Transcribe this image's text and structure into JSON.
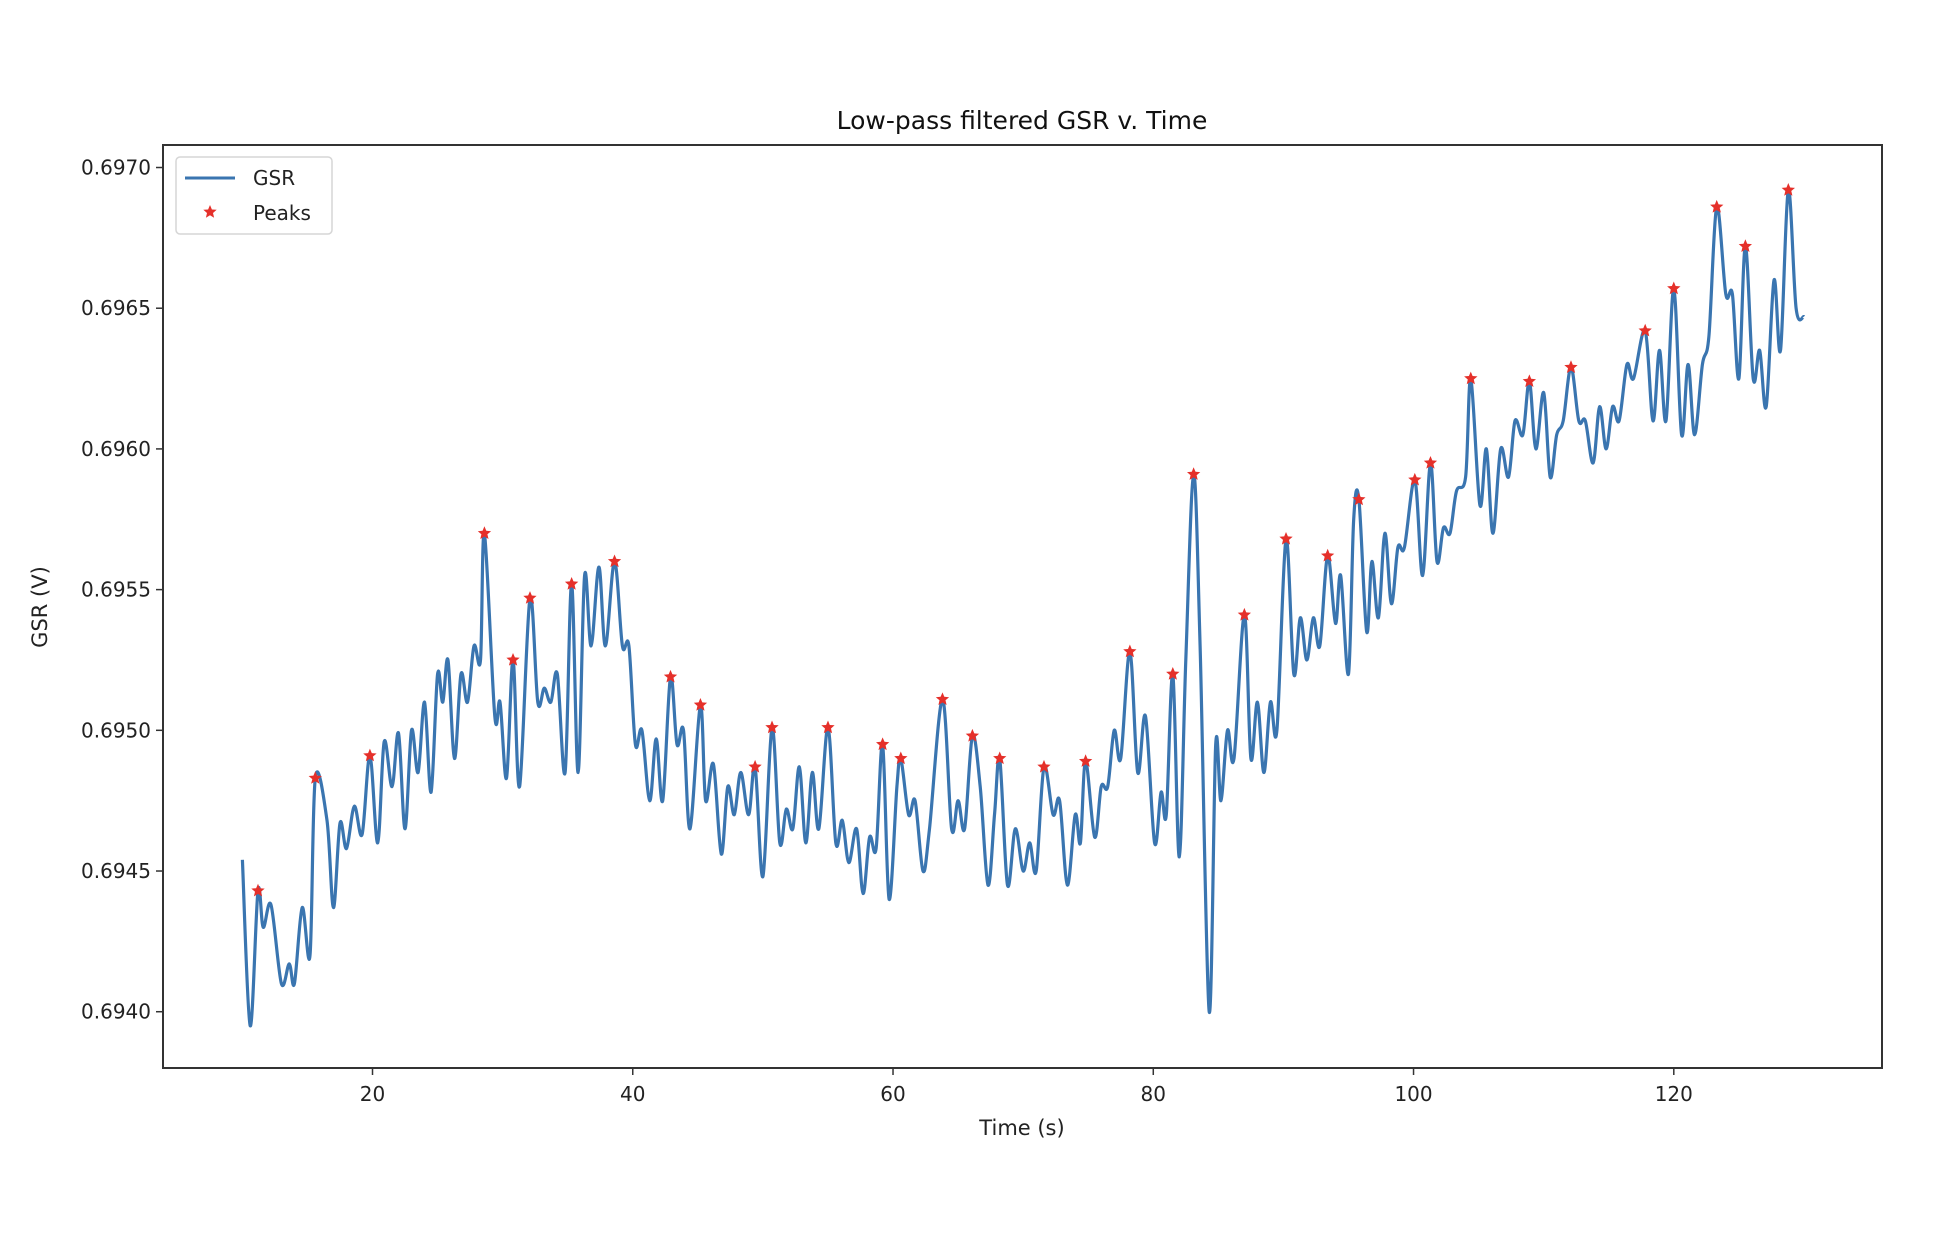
{
  "chart_data": {
    "type": "line",
    "title": "Low-pass filtered GSR v. Time",
    "xlabel": "Time (s)",
    "ylabel": "GSR (V)",
    "xlim": [
      3.9,
      136.0
    ],
    "ylim": [
      0.6938,
      0.69708
    ],
    "xticks": [
      20,
      40,
      60,
      80,
      100,
      120
    ],
    "xtick_labels": [
      "20",
      "40",
      "60",
      "80",
      "100",
      "120"
    ],
    "yticks": [
      0.694,
      0.6945,
      0.695,
      0.6955,
      0.696,
      0.6965,
      0.697
    ],
    "ytick_labels": [
      "0.6940",
      "0.6945",
      "0.6950",
      "0.6955",
      "0.6960",
      "0.6965",
      "0.6970"
    ],
    "grid": false,
    "legend": {
      "placement": "upper-left",
      "entries": [
        "GSR",
        "Peaks"
      ]
    },
    "colors": {
      "GSR": "#3a75b0",
      "Peaks": "#e5302a"
    },
    "series": [
      {
        "name": "GSR",
        "x": [
          10,
          10.6,
          11.2,
          11.6,
          12.2,
          13.0,
          13.6,
          14.0,
          14.6,
          15.2,
          15.6,
          16.5,
          17.0,
          17.5,
          18.0,
          18.6,
          19.2,
          19.8,
          20.4,
          20.9,
          21.5,
          22.0,
          22.5,
          23.0,
          23.5,
          24.0,
          24.5,
          25.0,
          25.4,
          25.8,
          26.3,
          26.8,
          27.3,
          27.8,
          28.3,
          28.6,
          29.4,
          29.8,
          30.3,
          30.8,
          31.3,
          32.1,
          32.7,
          33.2,
          33.7,
          34.2,
          34.8,
          35.3,
          35.8,
          36.3,
          36.8,
          37.4,
          37.9,
          38.6,
          39.2,
          39.7,
          40.2,
          40.7,
          41.3,
          41.8,
          42.3,
          42.9,
          43.4,
          43.9,
          44.4,
          45.2,
          45.6,
          46.2,
          46.8,
          47.3,
          47.8,
          48.3,
          48.9,
          49.4,
          50.0,
          50.7,
          51.3,
          51.8,
          52.3,
          52.8,
          53.3,
          53.8,
          54.3,
          55.0,
          55.6,
          56.1,
          56.6,
          57.2,
          57.7,
          58.2,
          58.7,
          59.2,
          59.7,
          60.3,
          60.6,
          61.2,
          61.7,
          62.3,
          62.8,
          63.8,
          64.5,
          65.0,
          65.5,
          66.1,
          66.7,
          67.3,
          67.8,
          68.2,
          68.8,
          69.4,
          70.0,
          70.5,
          71.0,
          71.6,
          72.3,
          72.8,
          73.4,
          74.0,
          74.4,
          74.8,
          75.5,
          76.0,
          76.5,
          77.0,
          77.5,
          78.2,
          78.8,
          79.4,
          80.1,
          80.6,
          81.0,
          81.5,
          82.0,
          82.5,
          83.1,
          83.6,
          84.3,
          84.8,
          85.2,
          85.7,
          86.2,
          87.0,
          87.5,
          88.0,
          88.5,
          89.0,
          89.5,
          90.2,
          90.8,
          91.3,
          91.8,
          92.3,
          92.8,
          93.4,
          94.0,
          94.4,
          95.0,
          95.4,
          95.8,
          96.4,
          96.8,
          97.3,
          97.8,
          98.3,
          98.8,
          99.3,
          100.1,
          100.7,
          101.3,
          101.8,
          102.3,
          102.8,
          103.3,
          104.0,
          104.4,
          105.1,
          105.6,
          106.1,
          106.7,
          107.3,
          107.8,
          108.4,
          108.9,
          109.4,
          110.0,
          110.5,
          111.0,
          111.5,
          112.1,
          112.7,
          113.2,
          113.8,
          114.3,
          114.8,
          115.3,
          115.8,
          116.4,
          116.9,
          117.8,
          118.4,
          118.9,
          119.4,
          120.0,
          120.6,
          121.1,
          121.6,
          122.2,
          122.7,
          123.3,
          124.0,
          124.5,
          125.0,
          125.5,
          126.1,
          126.6,
          127.1,
          127.7,
          128.2,
          128.8,
          129.4,
          130.0
        ],
        "y": [
          0.69454,
          0.69395,
          0.69443,
          0.6943,
          0.69438,
          0.6941,
          0.69417,
          0.6941,
          0.69437,
          0.6942,
          0.69483,
          0.69468,
          0.69437,
          0.69467,
          0.69458,
          0.69473,
          0.69463,
          0.69491,
          0.6946,
          0.69496,
          0.6948,
          0.69499,
          0.69465,
          0.695,
          0.69485,
          0.6951,
          0.69478,
          0.6952,
          0.6951,
          0.69525,
          0.6949,
          0.6952,
          0.6951,
          0.6953,
          0.69525,
          0.6957,
          0.69505,
          0.6951,
          0.69483,
          0.69525,
          0.6948,
          0.69547,
          0.6951,
          0.69515,
          0.6951,
          0.6952,
          0.69485,
          0.69552,
          0.69485,
          0.69555,
          0.6953,
          0.69558,
          0.6953,
          0.6956,
          0.6953,
          0.6953,
          0.69495,
          0.695,
          0.69475,
          0.69497,
          0.69475,
          0.69519,
          0.69495,
          0.695,
          0.69465,
          0.69509,
          0.69475,
          0.69488,
          0.69456,
          0.6948,
          0.6947,
          0.69485,
          0.6947,
          0.69487,
          0.69448,
          0.69501,
          0.6946,
          0.69472,
          0.69465,
          0.69487,
          0.6946,
          0.69485,
          0.69465,
          0.69501,
          0.6946,
          0.69468,
          0.69453,
          0.69465,
          0.69442,
          0.69462,
          0.69458,
          0.69495,
          0.6944,
          0.6948,
          0.6949,
          0.6947,
          0.69475,
          0.6945,
          0.69465,
          0.69511,
          0.69465,
          0.69475,
          0.69465,
          0.69498,
          0.6948,
          0.69445,
          0.6947,
          0.6949,
          0.69445,
          0.69465,
          0.6945,
          0.6946,
          0.6945,
          0.69487,
          0.6947,
          0.69475,
          0.69445,
          0.6947,
          0.6946,
          0.69489,
          0.69462,
          0.6948,
          0.6948,
          0.695,
          0.6949,
          0.69528,
          0.69485,
          0.69505,
          0.6946,
          0.69478,
          0.6947,
          0.6952,
          0.69455,
          0.69525,
          0.69591,
          0.6953,
          0.694,
          0.69495,
          0.69475,
          0.695,
          0.6949,
          0.69541,
          0.6949,
          0.6951,
          0.69485,
          0.6951,
          0.695,
          0.69568,
          0.6952,
          0.6954,
          0.69525,
          0.6954,
          0.6953,
          0.69562,
          0.69538,
          0.69555,
          0.6952,
          0.69575,
          0.69582,
          0.69535,
          0.6956,
          0.6954,
          0.6957,
          0.69545,
          0.69565,
          0.69565,
          0.69589,
          0.69555,
          0.69595,
          0.6956,
          0.69572,
          0.6957,
          0.69585,
          0.6959,
          0.69625,
          0.6958,
          0.696,
          0.6957,
          0.696,
          0.6959,
          0.6961,
          0.69605,
          0.69624,
          0.696,
          0.6962,
          0.6959,
          0.69605,
          0.6961,
          0.69629,
          0.6961,
          0.6961,
          0.69595,
          0.69615,
          0.696,
          0.69615,
          0.6961,
          0.6963,
          0.69625,
          0.69642,
          0.6961,
          0.69635,
          0.6961,
          0.69657,
          0.69605,
          0.6963,
          0.69605,
          0.6963,
          0.6964,
          0.69686,
          0.69655,
          0.69655,
          0.69625,
          0.69672,
          0.69625,
          0.69635,
          0.69615,
          0.6966,
          0.69635,
          0.69692,
          0.6965,
          0.69647
        ]
      },
      {
        "name": "Peaks",
        "x": [
          11.2,
          15.6,
          19.8,
          28.6,
          30.8,
          32.1,
          35.3,
          38.6,
          42.9,
          45.2,
          49.4,
          50.7,
          55.0,
          59.2,
          60.6,
          63.8,
          66.1,
          68.2,
          71.6,
          74.8,
          78.2,
          81.5,
          83.1,
          87.0,
          90.2,
          93.4,
          95.8,
          100.1,
          101.3,
          104.4,
          108.9,
          112.1,
          117.8,
          120.0,
          123.3,
          125.5,
          128.8
        ],
        "y": [
          0.69443,
          0.69483,
          0.69491,
          0.6957,
          0.69525,
          0.69547,
          0.69552,
          0.6956,
          0.69519,
          0.69509,
          0.69487,
          0.69501,
          0.69501,
          0.69495,
          0.6949,
          0.69511,
          0.69498,
          0.6949,
          0.69487,
          0.69489,
          0.69528,
          0.6952,
          0.69591,
          0.69541,
          0.69568,
          0.69562,
          0.69582,
          0.69589,
          0.69595,
          0.69625,
          0.69624,
          0.69629,
          0.69642,
          0.69657,
          0.69686,
          0.69672,
          0.69692
        ]
      }
    ]
  }
}
